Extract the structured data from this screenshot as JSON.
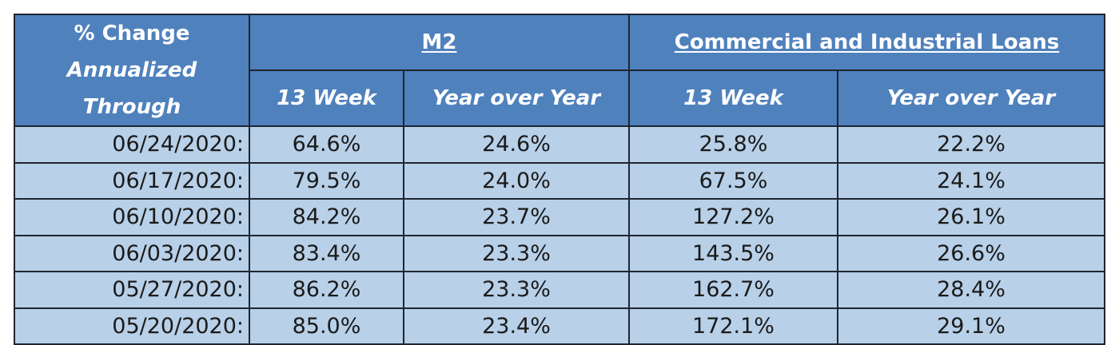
{
  "header": {
    "corner_line1": "% Change",
    "corner_line2": "Annualized Through",
    "group_m2": "M2",
    "group_loans": "Commercial and Industrial Loans",
    "sub_m2_13w": "13 Week",
    "sub_m2_yoy": "Year over Year",
    "sub_loans_13w": "13 Week",
    "sub_loans_yoy": "Year over Year"
  },
  "rows": [
    {
      "date": "06/24/2020:",
      "m2_13w": "64.6%",
      "m2_yoy": "24.6%",
      "loans_13w": "25.8%",
      "loans_yoy": "22.2%"
    },
    {
      "date": "06/17/2020:",
      "m2_13w": "79.5%",
      "m2_yoy": "24.0%",
      "loans_13w": "67.5%",
      "loans_yoy": "24.1%"
    },
    {
      "date": "06/10/2020:",
      "m2_13w": "84.2%",
      "m2_yoy": "23.7%",
      "loans_13w": "127.2%",
      "loans_yoy": "26.1%"
    },
    {
      "date": "06/03/2020:",
      "m2_13w": "83.4%",
      "m2_yoy": "23.3%",
      "loans_13w": "143.5%",
      "loans_yoy": "26.6%"
    },
    {
      "date": "05/27/2020:",
      "m2_13w": "86.2%",
      "m2_yoy": "23.3%",
      "loans_13w": "162.7%",
      "loans_yoy": "28.4%"
    },
    {
      "date": "05/20/2020:",
      "m2_13w": "85.0%",
      "m2_yoy": "23.4%",
      "loans_13w": "172.1%",
      "loans_yoy": "29.1%"
    }
  ],
  "colors": {
    "header_bg": "#4f81bd",
    "cell_bg": "#b8d0e8",
    "border": "#1f2530"
  }
}
